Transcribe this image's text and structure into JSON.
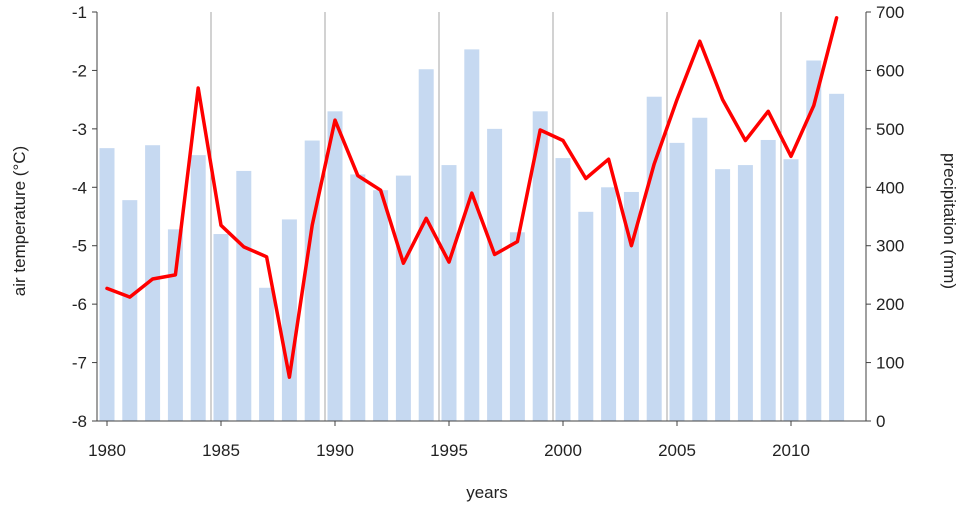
{
  "chart_data": {
    "type": "bar",
    "title": "",
    "xlabel": "years",
    "ylabel_left": "air temperature (°C)",
    "ylabel_right": "precipitation (mm)",
    "x_ticks": [
      1980,
      1985,
      1990,
      1995,
      2000,
      2005,
      2010
    ],
    "y_left_lim": [
      -8,
      -1
    ],
    "y_left_ticks": [
      "-1",
      "-2",
      "-3",
      "-4",
      "-5",
      "-6",
      "-7",
      "-8"
    ],
    "y_right_lim": [
      0,
      700
    ],
    "y_right_ticks": [
      "700",
      "600",
      "500",
      "400",
      "300",
      "200",
      "100",
      "0"
    ],
    "grid": "vertical gridlines at labeled years",
    "colors": {
      "bars": "#c6d9f1",
      "line": "#ff0000",
      "grid": "#a6a6a6",
      "axis": "#404040"
    },
    "series": [
      {
        "kind": "bar",
        "axis": "right",
        "x": [
          1980,
          1981,
          1982,
          1983,
          1984,
          1985,
          1986,
          1987,
          1988,
          1989,
          1990,
          1991,
          1992,
          1993,
          1994,
          1995,
          1996,
          1997,
          1998,
          1999,
          2000,
          2001,
          2002,
          2003,
          2004,
          2005,
          2006,
          2007,
          2008,
          2009,
          2010,
          2011,
          2012
        ],
        "values": [
          467,
          378,
          472,
          328,
          455,
          320,
          428,
          228,
          345,
          480,
          530,
          422,
          395,
          420,
          602,
          438,
          636,
          500,
          323,
          530,
          450,
          358,
          400,
          392,
          555,
          476,
          519,
          431,
          438,
          481,
          448,
          617,
          560
        ]
      },
      {
        "kind": "line",
        "axis": "left",
        "x": [
          1980,
          1981,
          1982,
          1983,
          1984,
          1985,
          1986,
          1987,
          1988,
          1989,
          1990,
          1991,
          1992,
          1993,
          1994,
          1995,
          1996,
          1997,
          1998,
          1999,
          2000,
          2001,
          2002,
          2003,
          2004,
          2005,
          2006,
          2007,
          2008,
          2009,
          2010,
          2011,
          2012
        ],
        "values": [
          -5.73,
          -5.88,
          -5.57,
          -5.5,
          -2.3,
          -4.65,
          -5.02,
          -5.19,
          -7.25,
          -4.65,
          -2.85,
          -3.8,
          -4.05,
          -5.3,
          -4.53,
          -5.28,
          -4.1,
          -5.15,
          -4.93,
          -3.02,
          -3.2,
          -3.85,
          -3.52,
          -5.0,
          -3.6,
          -2.5,
          -1.5,
          -2.5,
          -3.2,
          -2.7,
          -3.47,
          -2.6,
          -1.1
        ]
      }
    ]
  }
}
